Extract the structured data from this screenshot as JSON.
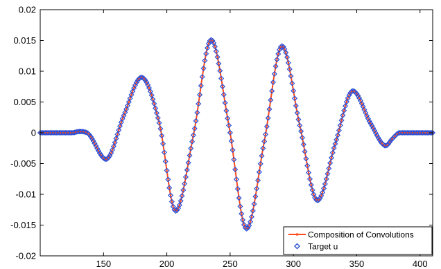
{
  "chart_data": {
    "type": "line",
    "title": "",
    "xlabel": "",
    "ylabel": "",
    "xlim": [
      100,
      410
    ],
    "ylim": [
      -0.02,
      0.02
    ],
    "x_ticks": [
      150,
      200,
      250,
      300,
      350,
      400
    ],
    "x_tick_labels": [
      "150",
      "200",
      "250",
      "300",
      "350",
      "400"
    ],
    "y_ticks": [
      -0.02,
      -0.015,
      -0.01,
      -0.005,
      0,
      0.005,
      0.01,
      0.015,
      0.02
    ],
    "y_tick_labels": [
      "-0.02",
      "-0.015",
      "-0.01",
      "-0.005",
      "0",
      "0.005",
      "0.01",
      "0.015",
      "0.02"
    ],
    "grid": false,
    "legend_position": "bottom-right",
    "series": [
      {
        "name": "Composition of Convolutions",
        "style": "line with point markers",
        "color": "#ff4a1c",
        "x": [
          100,
          125,
          131,
          137,
          152,
          166,
          180,
          194,
          207,
          221,
          235,
          249,
          263,
          277,
          291,
          305,
          319,
          333,
          347,
          361,
          373,
          378,
          384,
          410
        ],
        "y": [
          0,
          0,
          0.0002,
          0,
          -0.0043,
          0.0028,
          0.009,
          0.0016,
          -0.0127,
          -0.0004,
          0.0151,
          0.0012,
          -0.0156,
          -0.0014,
          0.0141,
          0.0012,
          -0.011,
          -0.0018,
          0.0068,
          0.0015,
          -0.0021,
          -0.001,
          0,
          0
        ]
      },
      {
        "name": "Target u",
        "style": "diamond markers",
        "color": "#2b4fd6",
        "x": [
          100,
          125,
          131,
          137,
          152,
          166,
          180,
          194,
          207,
          221,
          235,
          249,
          263,
          277,
          291,
          305,
          319,
          333,
          347,
          361,
          373,
          378,
          384,
          410
        ],
        "y": [
          0,
          0,
          0.0002,
          0,
          -0.0043,
          0.0028,
          0.009,
          0.0016,
          -0.0127,
          -0.0004,
          0.0151,
          0.0012,
          -0.0156,
          -0.0014,
          0.0141,
          0.0012,
          -0.011,
          -0.0018,
          0.0068,
          0.0015,
          -0.0021,
          -0.001,
          0,
          0
        ]
      }
    ]
  }
}
